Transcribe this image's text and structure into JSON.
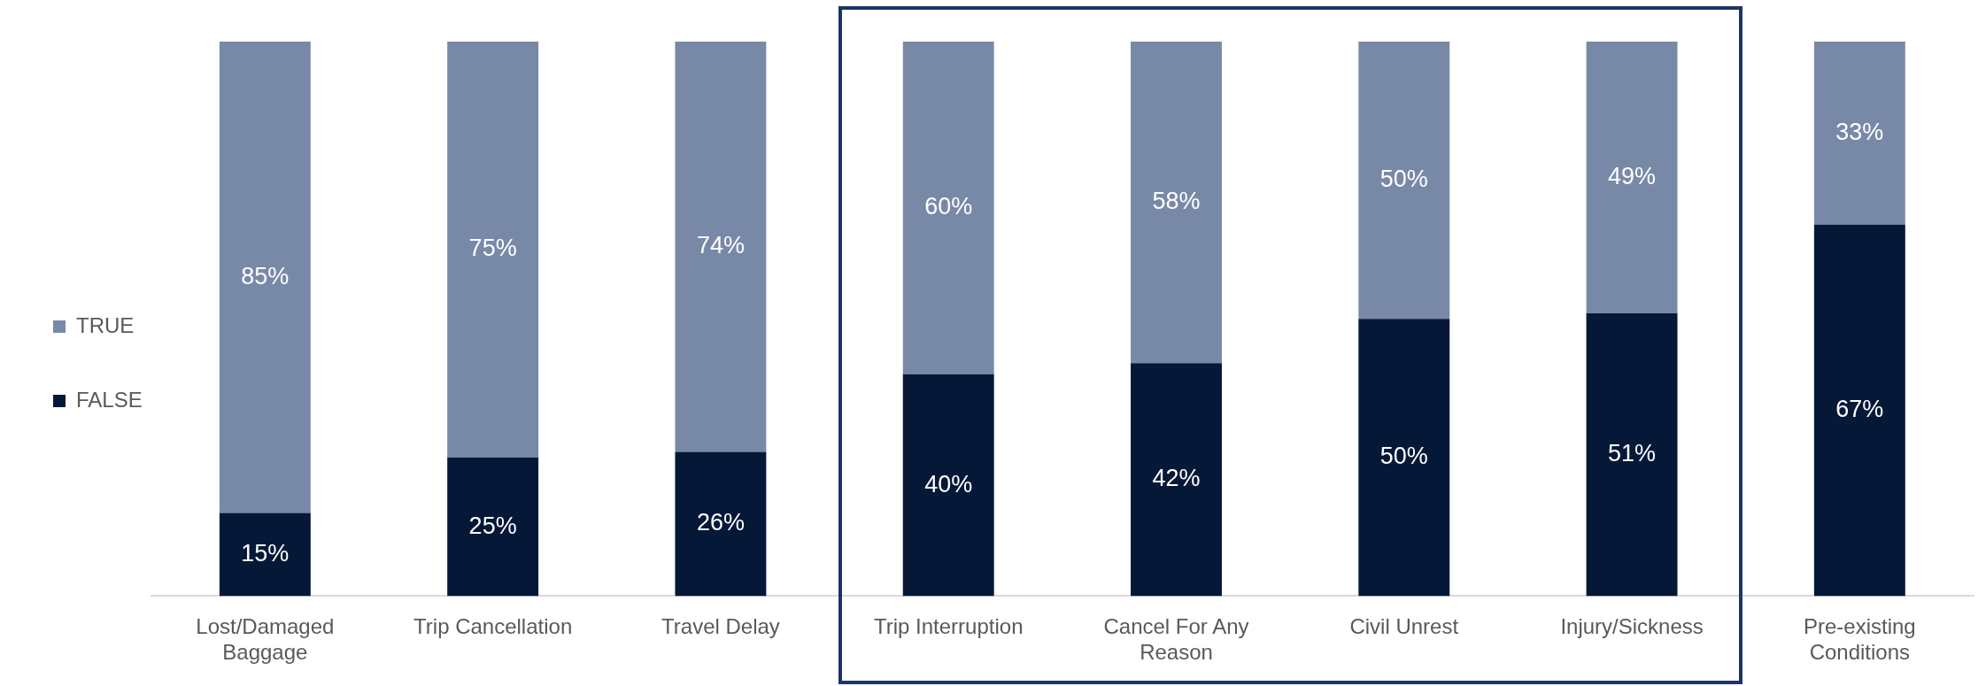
{
  "chart_data": {
    "type": "bar",
    "stacked": true,
    "legend": "left",
    "grid": false,
    "categories": [
      "Lost/Damaged Baggage",
      "Trip Cancellation",
      "Travel Delay",
      "Trip Interruption",
      "Cancel For Any Reason",
      "Civil Unrest",
      "Injury/Sickness",
      "Pre-existing Conditions"
    ],
    "series": [
      {
        "name": "FALSE",
        "color": "#061838",
        "values": [
          15,
          25,
          26,
          40,
          42,
          50,
          51,
          67
        ],
        "value_labels": [
          "15%",
          "25%",
          "26%",
          "40%",
          "42%",
          "50%",
          "51%",
          "67%"
        ]
      },
      {
        "name": "TRUE",
        "color": "#7889a8",
        "values": [
          85,
          75,
          74,
          60,
          58,
          50,
          49,
          33
        ],
        "value_labels": [
          "85%",
          "75%",
          "74%",
          "60%",
          "58%",
          "50%",
          "49%",
          "33%"
        ]
      }
    ]
  }
}
